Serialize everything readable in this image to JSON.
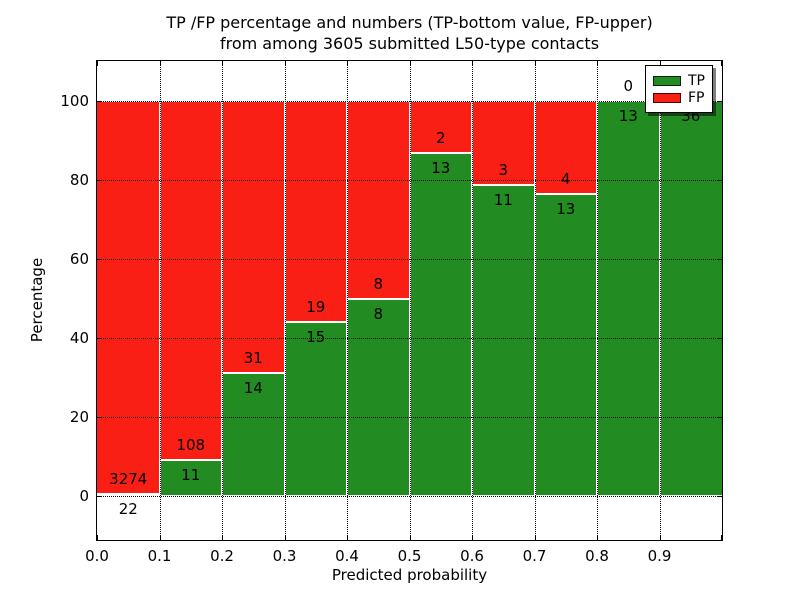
{
  "figure": {
    "title_lines": [
      "TP /FP percentage and numbers (TP-bottom value, FP-upper)",
      "from among 3605 submitted L50-type contacts"
    ]
  },
  "chart_data": {
    "type": "bar",
    "stacked": true,
    "normalized": "percent",
    "title": "TP /FP percentage and numbers (TP-bottom value, FP-upper) from among 3605 submitted L50-type contacts",
    "xlabel": "Predicted probability",
    "ylabel": "Percentage",
    "total_contacts": 3605,
    "categories": [
      "0.0-0.1",
      "0.1-0.2",
      "0.2-0.3",
      "0.3-0.4",
      "0.4-0.5",
      "0.5-0.6",
      "0.6-0.7",
      "0.7-0.8",
      "0.8-0.9",
      "0.9-1.0"
    ],
    "series": [
      {
        "name": "TP",
        "color": "#228b22",
        "values": [
          22,
          11,
          14,
          15,
          8,
          13,
          11,
          13,
          13,
          36
        ]
      },
      {
        "name": "FP",
        "color": "#fa1f15",
        "values": [
          3274,
          108,
          31,
          19,
          8,
          2,
          3,
          4,
          0,
          0
        ]
      }
    ],
    "bar_label_note": "TP count printed below segment boundary, FP count above it",
    "xlim": [
      0,
      1
    ],
    "ylim": [
      -11,
      110
    ],
    "xticks": [
      "0.0",
      "0.1",
      "0.2",
      "0.3",
      "0.4",
      "0.5",
      "0.6",
      "0.7",
      "0.8",
      "0.9"
    ],
    "yticks": [
      0,
      20,
      40,
      60,
      80,
      100
    ],
    "grid": true,
    "grid_style": "dotted",
    "legend": {
      "position": "upper right"
    }
  }
}
